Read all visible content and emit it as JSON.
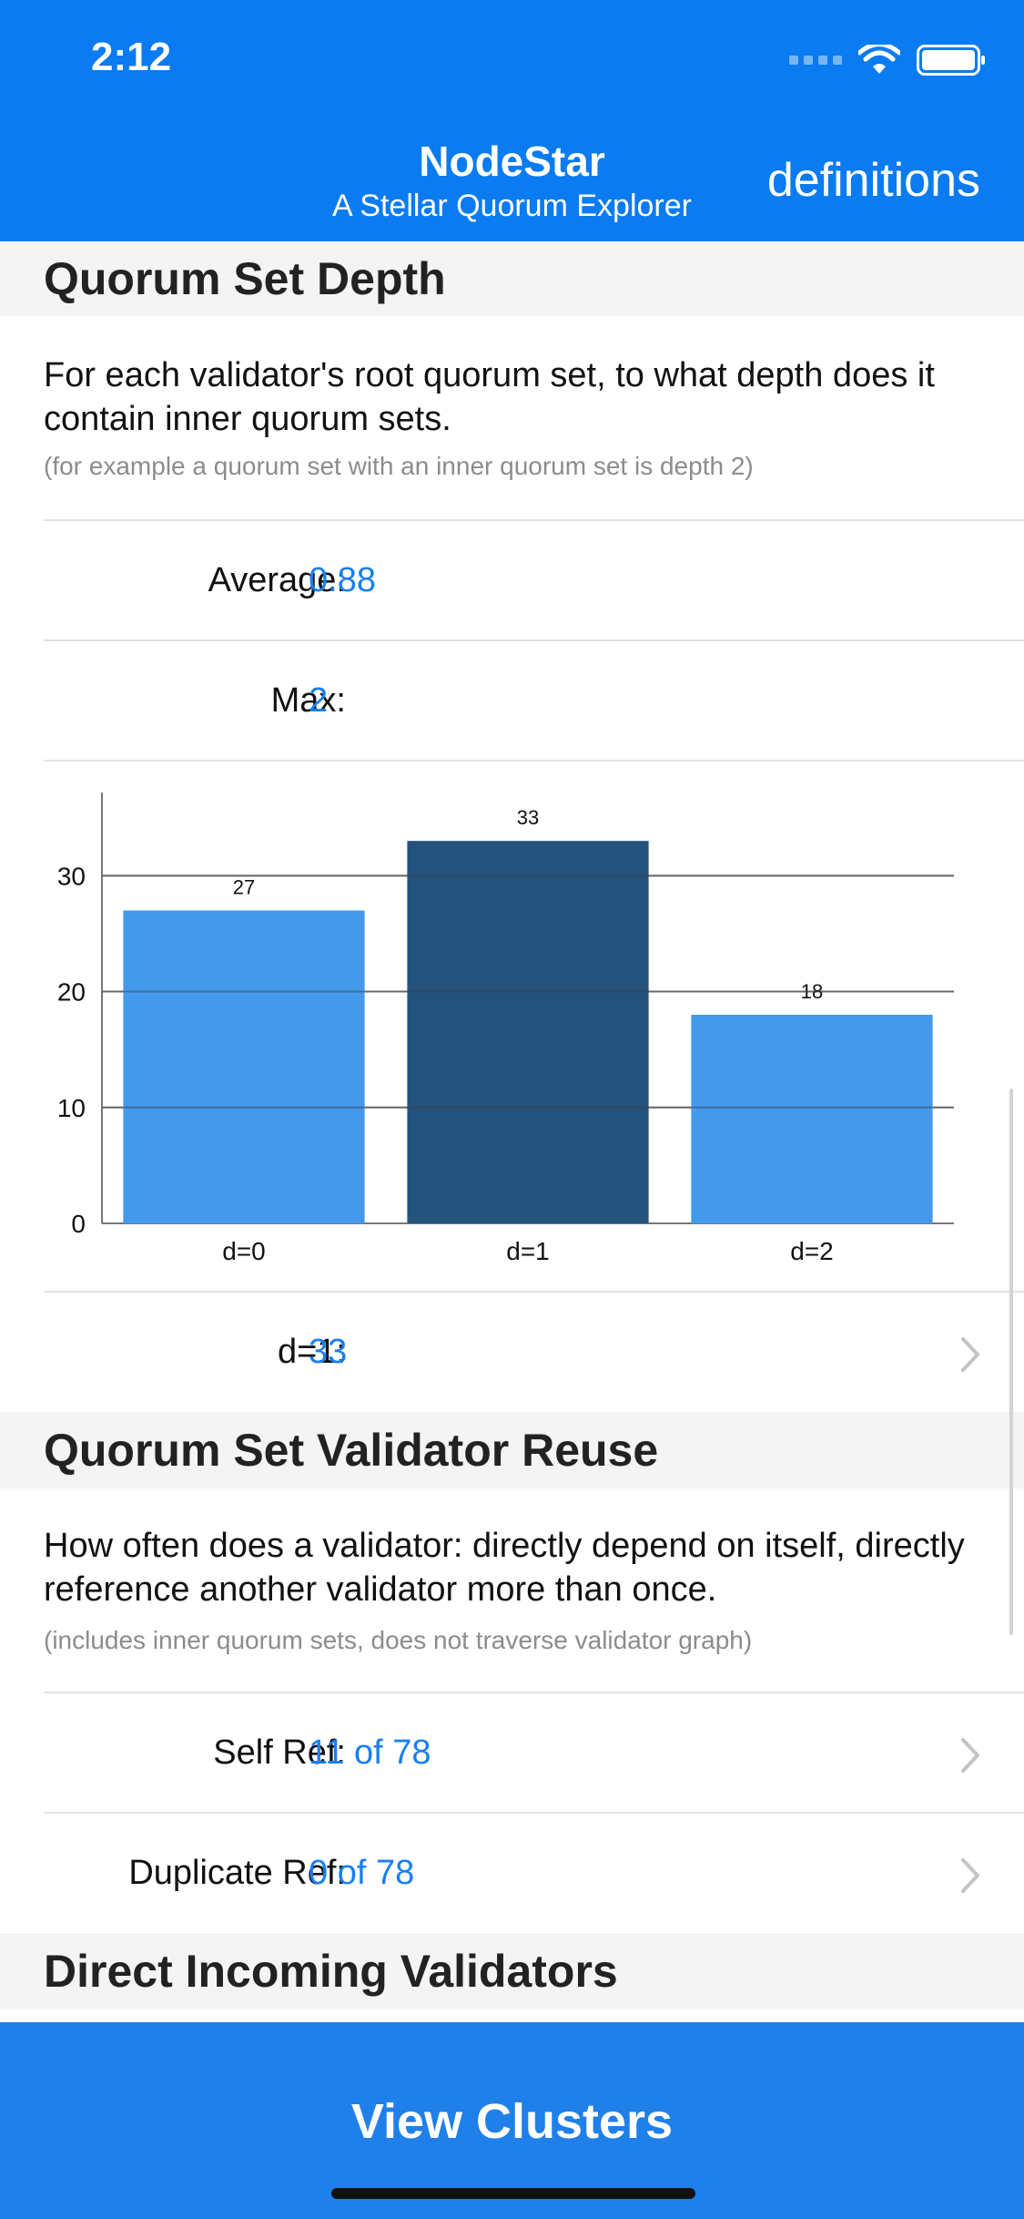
{
  "status_bar": {
    "time": "2:12"
  },
  "header": {
    "title": "NodeStar",
    "subtitle": "A Stellar Quorum Explorer",
    "definitions_label": "definitions"
  },
  "sections": {
    "depth": {
      "title": "Quorum Set Depth",
      "description": "For each validator's root quorum set, to what depth does it contain inner quorum sets.",
      "note": "(for example a quorum set with an inner quorum set is depth 2)",
      "rows": [
        {
          "label": "Average:",
          "value": "0.88"
        },
        {
          "label": "Max:",
          "value": "2"
        }
      ],
      "selected_row": {
        "label": "d=1:",
        "value": "33"
      }
    },
    "reuse": {
      "title": "Quorum Set Validator Reuse",
      "description": "How often does a validator: directly depend on itself, directly reference another validator more than once.",
      "note": "(includes inner quorum sets, does not traverse validator graph)",
      "rows": [
        {
          "label": "Self Ref:",
          "value": "11 of 78"
        },
        {
          "label": "Duplicate Ref:",
          "value": "0 of 78"
        }
      ]
    },
    "incoming": {
      "title": "Direct Incoming Validators"
    }
  },
  "chart_data": {
    "type": "bar",
    "categories": [
      "d=0",
      "d=1",
      "d=2"
    ],
    "values": [
      27,
      33,
      18
    ],
    "data_labels": [
      "27",
      "33",
      "18"
    ],
    "y_ticks": [
      "0",
      "10",
      "20",
      "30"
    ],
    "ylim": [
      0,
      36
    ],
    "selected_index": 1,
    "grid": true,
    "colors": {
      "bar": "#4499ea",
      "selected": "#23527c"
    }
  },
  "bottom_button": {
    "label": "View Clusters"
  },
  "colors": {
    "header": "#0a7bf0",
    "accent": "#1a7ff0",
    "button": "#1f80ea"
  }
}
